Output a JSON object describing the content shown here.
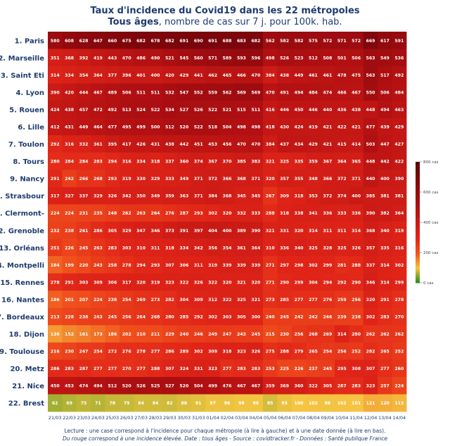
{
  "title_line1": "Taux d'incidence du Covid19 dans les 22 métropoles",
  "title_line2_bold": "Tous âges",
  "title_line2_rest": ", nombre de cas sur 7 j. pour 100k. hab.",
  "footer_line1": "Lecture : une case correspond à l'incidence pour chaque métropole (à lire à gauche) et à une date donnée (à lire en bas).",
  "footer_line2": "Du rouge correspond à une incidence élevée.  Date : tous âges - Source : covidtracker.fr - Données : Santé publique France",
  "colors": {
    "title": "#1f3c6e",
    "low": "#1b8a1b",
    "mid_low": "#f5c542",
    "mid": "#e8281c",
    "high": "#5a0008"
  },
  "chart_data": {
    "type": "heatmap",
    "x": [
      "21/03",
      "22/03",
      "23/03",
      "24/03",
      "25/03",
      "26/03",
      "27/03",
      "28/03",
      "29/03",
      "30/03",
      "31/03",
      "01/04",
      "02/04",
      "03/04",
      "04/04",
      "05/04",
      "06/04",
      "07/04",
      "08/04",
      "09/04",
      "10/04",
      "11/04",
      "12/04",
      "13/04",
      "14/04"
    ],
    "y": [
      "1. Paris",
      "2. Marseille",
      "3. Saint Eti",
      "4. Lyon",
      "5. Rouen",
      "6. Lille",
      "7. Toulon",
      "8. Tours",
      "9. Nancy",
      "10. Strasbour",
      "11. Clermont-",
      "12. Grenoble",
      "13. Orléans",
      "14. Montpelli",
      "15. Rennes",
      "16. Nantes",
      "17. Bordeaux",
      "18. Dijon",
      "19. Toulouse",
      "20. Metz",
      "21. Nice",
      "22. Brest"
    ],
    "values": [
      [
        580,
        608,
        628,
        647,
        660,
        675,
        682,
        678,
        682,
        691,
        690,
        691,
        688,
        683,
        682,
        562,
        582,
        582,
        575,
        572,
        571,
        572,
        669,
        617,
        591
      ],
      [
        351,
        368,
        392,
        419,
        443,
        470,
        486,
        490,
        521,
        545,
        560,
        571,
        589,
        593,
        596,
        498,
        526,
        523,
        512,
        508,
        501,
        506,
        563,
        549,
        536
      ],
      [
        314,
        334,
        354,
        364,
        377,
        396,
        401,
        400,
        420,
        429,
        441,
        462,
        465,
        466,
        470,
        384,
        438,
        449,
        461,
        461,
        478,
        475,
        563,
        517,
        492
      ],
      [
        390,
        420,
        444,
        467,
        489,
        506,
        511,
        511,
        532,
        547,
        552,
        559,
        562,
        569,
        569,
        470,
        491,
        494,
        484,
        474,
        466,
        467,
        550,
        506,
        484
      ],
      [
        424,
        438,
        457,
        472,
        492,
        513,
        524,
        522,
        534,
        527,
        526,
        522,
        521,
        515,
        511,
        416,
        446,
        450,
        446,
        440,
        436,
        438,
        448,
        494,
        463
      ],
      [
        412,
        431,
        449,
        464,
        477,
        495,
        499,
        500,
        512,
        520,
        522,
        518,
        504,
        498,
        498,
        418,
        430,
        424,
        419,
        421,
        422,
        421,
        477,
        439,
        429
      ],
      [
        292,
        316,
        332,
        361,
        395,
        417,
        426,
        431,
        438,
        442,
        451,
        453,
        456,
        470,
        470,
        384,
        437,
        434,
        429,
        421,
        415,
        414,
        503,
        447,
        427
      ],
      [
        280,
        284,
        284,
        283,
        294,
        316,
        334,
        318,
        337,
        360,
        374,
        367,
        370,
        385,
        383,
        321,
        325,
        335,
        359,
        367,
        364,
        365,
        448,
        442,
        422
      ],
      [
        291,
        242,
        266,
        268,
        293,
        319,
        330,
        329,
        333,
        349,
        371,
        372,
        366,
        368,
        371,
        320,
        357,
        355,
        348,
        366,
        372,
        371,
        440,
        400,
        390
      ],
      [
        317,
        327,
        337,
        329,
        326,
        342,
        350,
        349,
        359,
        363,
        371,
        384,
        368,
        345,
        345,
        267,
        309,
        318,
        353,
        372,
        374,
        400,
        385,
        381,
        381
      ],
      [
        224,
        224,
        231,
        235,
        248,
        262,
        263,
        264,
        276,
        287,
        293,
        302,
        320,
        332,
        333,
        288,
        318,
        338,
        341,
        336,
        333,
        336,
        390,
        382,
        364
      ],
      [
        232,
        238,
        261,
        286,
        305,
        329,
        347,
        346,
        373,
        391,
        397,
        404,
        400,
        389,
        390,
        321,
        331,
        320,
        314,
        311,
        311,
        314,
        368,
        340,
        319
      ],
      [
        251,
        226,
        245,
        263,
        283,
        303,
        310,
        311,
        318,
        334,
        342,
        356,
        354,
        361,
        364,
        310,
        336,
        340,
        325,
        328,
        325,
        326,
        357,
        335,
        316
      ],
      [
        184,
        199,
        220,
        243,
        258,
        278,
        294,
        293,
        307,
        306,
        311,
        319,
        339,
        339,
        339,
        271,
        297,
        298,
        302,
        299,
        281,
        288,
        337,
        314,
        302
      ],
      [
        278,
        291,
        303,
        309,
        306,
        317,
        320,
        319,
        323,
        322,
        326,
        322,
        320,
        321,
        320,
        271,
        290,
        299,
        304,
        294,
        292,
        290,
        346,
        314,
        299
      ],
      [
        186,
        201,
        207,
        224,
        238,
        254,
        269,
        273,
        282,
        304,
        309,
        312,
        322,
        325,
        321,
        273,
        285,
        277,
        277,
        276,
        259,
        256,
        320,
        291,
        278
      ],
      [
        213,
        228,
        238,
        243,
        245,
        256,
        264,
        268,
        280,
        285,
        292,
        302,
        303,
        305,
        300,
        240,
        245,
        242,
        242,
        246,
        239,
        238,
        302,
        283,
        270
      ],
      [
        136,
        152,
        161,
        173,
        186,
        202,
        210,
        211,
        229,
        240,
        246,
        249,
        247,
        243,
        245,
        215,
        230,
        256,
        268,
        269,
        314,
        280,
        262,
        262,
        262
      ],
      [
        216,
        230,
        247,
        254,
        272,
        276,
        278,
        277,
        286,
        289,
        302,
        309,
        318,
        323,
        326,
        275,
        288,
        279,
        265,
        254,
        256,
        252,
        282,
        265,
        252
      ],
      [
        286,
        283,
        287,
        277,
        277,
        270,
        277,
        288,
        307,
        324,
        331,
        323,
        277,
        283,
        283,
        253,
        225,
        226,
        237,
        245,
        295,
        308,
        307,
        277,
        260
      ],
      [
        450,
        453,
        474,
        494,
        512,
        520,
        526,
        525,
        527,
        520,
        504,
        499,
        476,
        467,
        467,
        359,
        369,
        360,
        322,
        305,
        287,
        283,
        323,
        257,
        224
      ],
      [
        62,
        69,
        75,
        71,
        78,
        79,
        84,
        84,
        82,
        88,
        91,
        97,
        96,
        98,
        98,
        85,
        95,
        100,
        102,
        98,
        102,
        101,
        121,
        120,
        113
      ]
    ],
    "colorbar": {
      "min": 0,
      "max": 800,
      "ticks": [
        0,
        200,
        400,
        600,
        800
      ],
      "tick_labels": [
        "0 cas",
        "200 cas",
        "400 cas",
        "600 cas",
        "800 cas"
      ]
    }
  }
}
